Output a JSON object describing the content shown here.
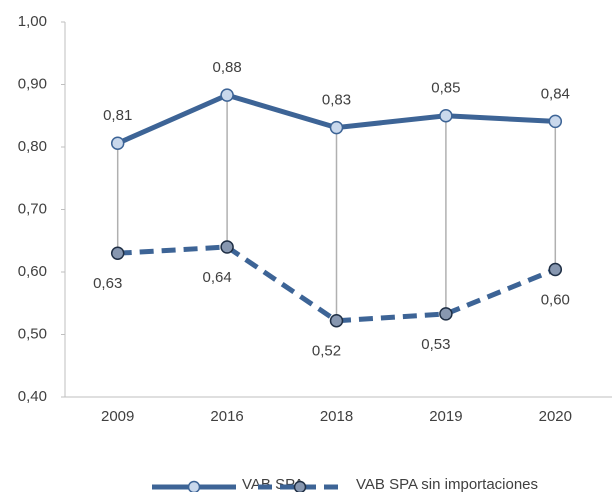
{
  "chart_data": {
    "type": "line",
    "categories": [
      "2009",
      "2016",
      "2018",
      "2019",
      "2020"
    ],
    "series": [
      {
        "name": "VAB SPA",
        "color": "#3d6496",
        "marker_fill": "#c9d8ec",
        "dash": false,
        "values": [
          0.806,
          0.883,
          0.831,
          0.85,
          0.841
        ],
        "value_labels": [
          "0,81",
          "0,88",
          "0,83",
          "0,85",
          "0,84"
        ]
      },
      {
        "name": "VAB SPA sin importaciones",
        "color": "#3d6496",
        "marker_fill": "#8797b0",
        "dash": true,
        "values": [
          0.63,
          0.64,
          0.522,
          0.533,
          0.604
        ],
        "value_labels": [
          "0,63",
          "0,64",
          "0,52",
          "0,53",
          "0,60"
        ]
      }
    ],
    "ylim": [
      0.4,
      1.0
    ],
    "yticks": [
      {
        "value": 0.4,
        "label": "0,40"
      },
      {
        "value": 0.5,
        "label": "0,50"
      },
      {
        "value": 0.6,
        "label": "0,60"
      },
      {
        "value": 0.7,
        "label": "0,70"
      },
      {
        "value": 0.8,
        "label": "0,80"
      },
      {
        "value": 0.9,
        "label": "0,90"
      },
      {
        "value": 1.0,
        "label": "1,00"
      }
    ],
    "grid": false,
    "legend": "bottom"
  }
}
